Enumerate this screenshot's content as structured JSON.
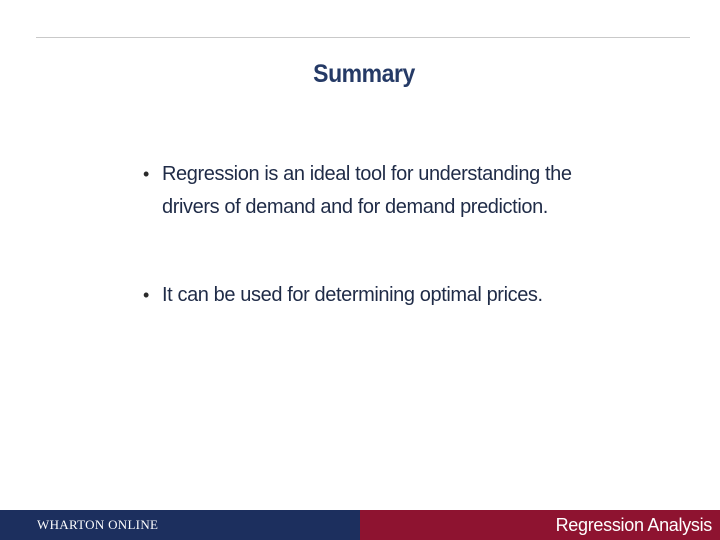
{
  "slide": {
    "title": "Summary",
    "bullets": [
      "Regression is an ideal tool for understanding the drivers of demand and for demand prediction.",
      "It can be used for determining optimal prices."
    ],
    "bullet_symbol": "•"
  },
  "footer": {
    "brand": "WHARTON ONLINE",
    "course": "Regression Analysis"
  },
  "colors": {
    "title": "#253a66",
    "footer_left": "#1c2f5e",
    "footer_right": "#8e1330"
  }
}
